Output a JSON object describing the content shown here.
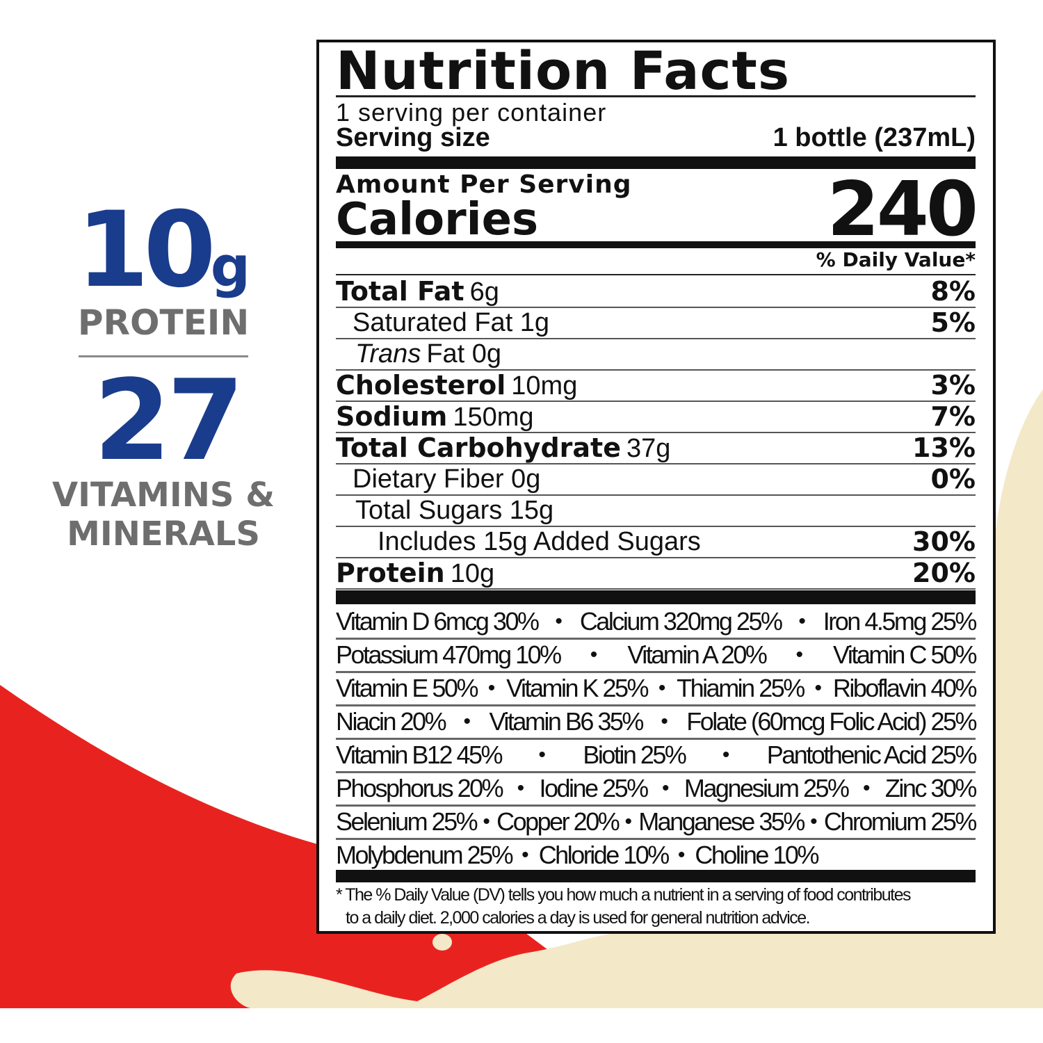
{
  "colors": {
    "brand_navy": "#1a3c8c",
    "red": "#e8231f",
    "cream": "#f3e8c8",
    "gray_text": "#6e6e6e"
  },
  "side": {
    "protein_value": "10",
    "protein_unit": "g",
    "protein_label": "PROTEIN",
    "vitamins_value": "27",
    "vitamins_label_1": "VITAMINS &",
    "vitamins_label_2": "MINERALS"
  },
  "label": {
    "title": "Nutrition Facts",
    "servings_per_container": "1 serving per container",
    "serving_size_label": "Serving size",
    "serving_size_value": "1 bottle (237mL)",
    "amount_per_serving": "Amount Per Serving",
    "calories_label": "Calories",
    "calories_value": "240",
    "dv_header": "% Daily Value*",
    "nutrients": [
      {
        "name": "Total Fat",
        "amount": "6g",
        "dv": "8%"
      },
      {
        "name": "Saturated Fat 1g",
        "amount": "",
        "dv": "5%"
      },
      {
        "name": "Trans",
        "amount": "Fat 0g",
        "dv": ""
      },
      {
        "name": "Cholesterol",
        "amount": "10mg",
        "dv": "3%"
      },
      {
        "name": "Sodium",
        "amount": "150mg",
        "dv": "7%"
      },
      {
        "name": "Total Carbohydrate",
        "amount": "37g",
        "dv": "13%"
      },
      {
        "name": "Dietary Fiber 0g",
        "amount": "",
        "dv": "0%"
      },
      {
        "name": "Total Sugars 15g",
        "amount": "",
        "dv": ""
      },
      {
        "name": "Includes 15g Added Sugars",
        "amount": "",
        "dv": "30%"
      },
      {
        "name": "Protein",
        "amount": "10g",
        "dv": "20%"
      }
    ],
    "vitamin_lines": [
      [
        "Vitamin D 6mcg 30%",
        "Calcium 320mg 25%",
        "Iron 4.5mg 25%"
      ],
      [
        "Potassium 470mg 10%",
        "Vitamin A 20%",
        "Vitamin C 50%"
      ],
      [
        "Vitamin E 50%",
        "Vitamin K 25%",
        "Thiamin 25%",
        "Riboflavin 40%"
      ],
      [
        "Niacin 20%",
        "Vitamin B6 35%",
        "Folate (60mcg Folic Acid) 25%"
      ],
      [
        "Vitamin B12 45%",
        "Biotin 25%",
        "Pantothenic Acid 25%"
      ],
      [
        "Phosphorus 20%",
        "Iodine 25%",
        "Magnesium 25%",
        "Zinc 30%"
      ],
      [
        "Selenium 25%",
        "Copper 20%",
        "Manganese 35%",
        "Chromium 25%"
      ],
      [
        "Molybdenum 25%",
        "Chloride 10%",
        "Choline 10%"
      ]
    ],
    "bullet": "•",
    "footnote_1": "* The % Daily Value (DV) tells you how much a nutrient in a serving of food contributes",
    "footnote_2": "to a daily diet. 2,000 calories a day is used for general nutrition advice."
  }
}
